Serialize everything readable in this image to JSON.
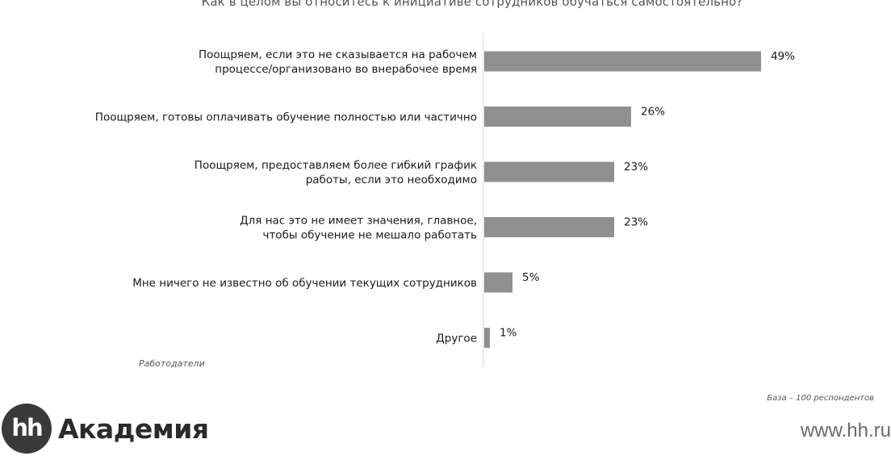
{
  "chart_data": {
    "type": "bar",
    "orientation": "horizontal",
    "title": "Как в целом вы относитесь к инициативе сотрудников обучаться самостоятельно?",
    "categories": [
      [
        "Поощряем, если это не сказывается на рабочем",
        "процессе/организовано во внерабочее время"
      ],
      [
        "Поощряем, готовы оплачивать обучение полностью или частично"
      ],
      [
        "Поощряем, предоставляем более гибкий график",
        "работы, если это необходимо"
      ],
      [
        "Для нас это не имеет значения, главное,",
        "чтобы обучение не мешало работать"
      ],
      [
        "Мне ничего не известно об обучении текущих сотрудников"
      ],
      [
        "Другое"
      ]
    ],
    "values": [
      49,
      26,
      23,
      23,
      5,
      1
    ],
    "value_labels": [
      "49%",
      "26%",
      "23%",
      "23%",
      "5%",
      "1%"
    ],
    "unit": "%",
    "xlim": [
      0,
      100
    ],
    "bar_color": "#909090",
    "group_label": "Работодатели",
    "note": "База – 100 респондентов"
  },
  "branding": {
    "logo_mark": "hh",
    "logo_text": "Академия",
    "site": "www.hh.ru"
  }
}
